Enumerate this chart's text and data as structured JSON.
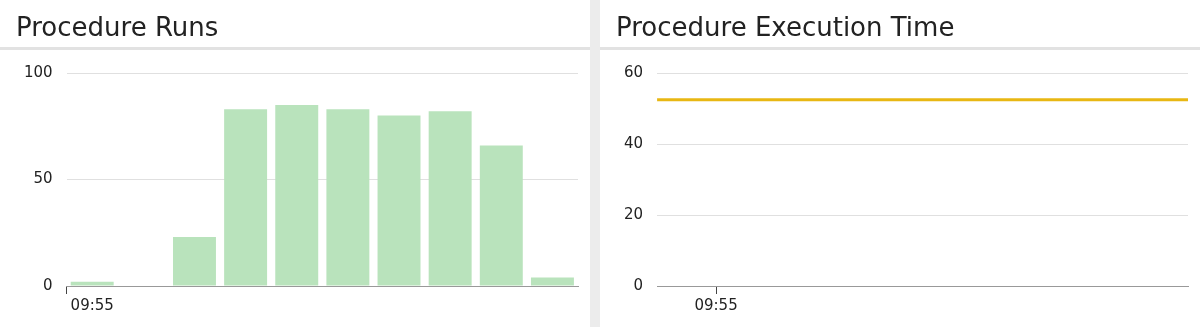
{
  "chart_data": [
    {
      "type": "bar",
      "title": "Procedure Runs",
      "categories": [
        "09:55",
        null,
        null,
        null,
        null,
        null,
        null,
        null,
        null,
        null
      ],
      "values": [
        2,
        0,
        23,
        83,
        85,
        83,
        80,
        82,
        66,
        4
      ],
      "color": "#b9e3bc",
      "ylim": [
        0,
        100
      ],
      "yticks": [
        0,
        50,
        100
      ],
      "grid": "y"
    },
    {
      "type": "line",
      "title": "Procedure Execution Time",
      "categories": [
        null,
        "09:55",
        null,
        null,
        null,
        null,
        null,
        null,
        null,
        null
      ],
      "values": [
        52.5,
        52.5,
        52.5,
        52.5,
        52.5,
        52.5,
        52.5,
        52.5,
        52.5,
        52.5
      ],
      "color": "#e8b713",
      "ylim": [
        0,
        60
      ],
      "yticks": [
        0,
        20,
        40,
        60
      ],
      "grid": "y"
    }
  ]
}
